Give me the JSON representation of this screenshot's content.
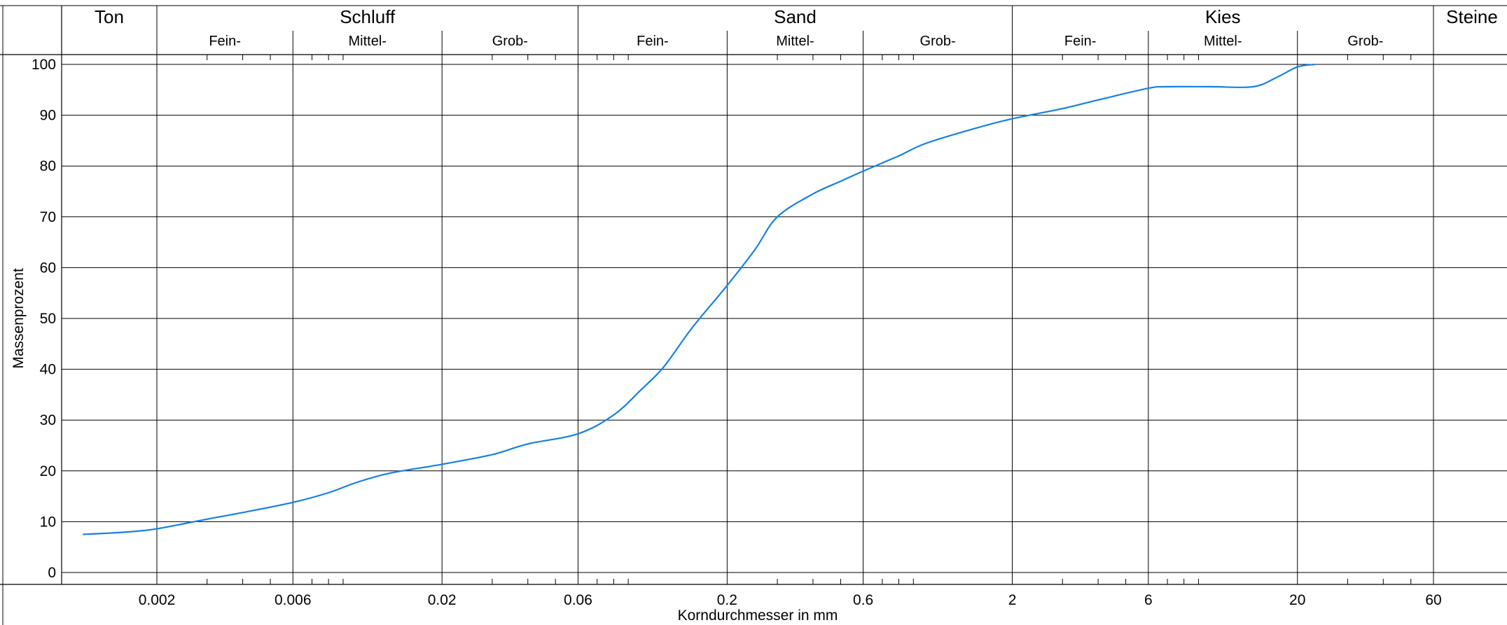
{
  "chart_data": {
    "type": "line",
    "title": "",
    "xlabel": "Korndurchmesser in mm",
    "ylabel": "Massenprozent",
    "x_scale": "log",
    "xlim": [
      0.0006,
      60
    ],
    "ylim": [
      0,
      100
    ],
    "y_ticks": [
      {
        "label": "0",
        "value": 0
      },
      {
        "label": "10",
        "value": 10
      },
      {
        "label": "20",
        "value": 20
      },
      {
        "label": "30",
        "value": 30
      },
      {
        "label": "40",
        "value": 40
      },
      {
        "label": "50",
        "value": 50
      },
      {
        "label": "60",
        "value": 60
      },
      {
        "label": "70",
        "value": 70
      },
      {
        "label": "80",
        "value": 80
      },
      {
        "label": "90",
        "value": 90
      },
      {
        "label": "100",
        "value": 100
      }
    ],
    "x_ticks": [
      {
        "label": "0.002",
        "value": 0.002
      },
      {
        "label": "0.006",
        "value": 0.006
      },
      {
        "label": "0.02",
        "value": 0.02
      },
      {
        "label": "0.06",
        "value": 0.06
      },
      {
        "label": "0.2",
        "value": 0.2
      },
      {
        "label": "0.6",
        "value": 0.6
      },
      {
        "label": "2",
        "value": 2
      },
      {
        "label": "6",
        "value": 6
      },
      {
        "label": "20",
        "value": 20
      },
      {
        "label": "60",
        "value": 60
      }
    ],
    "minor_ticks": [
      0.003,
      0.004,
      0.005,
      0.007,
      0.008,
      0.009,
      0.03,
      0.04,
      0.05,
      0.07,
      0.08,
      0.09,
      0.3,
      0.4,
      0.5,
      0.7,
      0.8,
      0.9,
      3,
      4,
      5,
      7,
      8,
      9,
      30,
      40,
      50
    ],
    "soil_classes": [
      {
        "name": "Ton",
        "from": 0.0006,
        "to": 0.002
      },
      {
        "name": "Schluff",
        "from": 0.002,
        "to": 0.06
      },
      {
        "name": "Sand",
        "from": 0.06,
        "to": 2
      },
      {
        "name": "Kies",
        "from": 2,
        "to": 60
      },
      {
        "name": "Steine",
        "from": 60,
        "to": 80
      }
    ],
    "sub_classes": [
      {
        "name": "Fein-",
        "from": 0.002,
        "to": 0.006
      },
      {
        "name": "Mittel-",
        "from": 0.006,
        "to": 0.02
      },
      {
        "name": "Grob-",
        "from": 0.02,
        "to": 0.06
      },
      {
        "name": "Fein-",
        "from": 0.06,
        "to": 0.2
      },
      {
        "name": "Mittel-",
        "from": 0.2,
        "to": 0.6
      },
      {
        "name": "Grob-",
        "from": 0.6,
        "to": 2
      },
      {
        "name": "Fein-",
        "from": 2,
        "to": 6
      },
      {
        "name": "Mittel-",
        "from": 6,
        "to": 20
      },
      {
        "name": "Grob-",
        "from": 20,
        "to": 60
      }
    ],
    "grid": true,
    "series": [
      {
        "color": "#1580e6",
        "x": [
          0.0011,
          0.0013,
          0.0016,
          0.002,
          0.003,
          0.004,
          0.006,
          0.008,
          0.01,
          0.013,
          0.02,
          0.03,
          0.04,
          0.06,
          0.08,
          0.1,
          0.12,
          0.15,
          0.2,
          0.25,
          0.3,
          0.4,
          0.5,
          0.6,
          0.8,
          1,
          1.5,
          2,
          3,
          4,
          6,
          7,
          10,
          14,
          17,
          20,
          23
        ],
        "y": [
          7.5,
          7.7,
          8.0,
          8.6,
          10.5,
          11.8,
          13.8,
          15.7,
          17.7,
          19.5,
          21.3,
          23.2,
          25.3,
          27.3,
          31.0,
          36.0,
          40.5,
          48.0,
          56.5,
          63.5,
          70.0,
          74.5,
          77.0,
          79.0,
          82.0,
          84.5,
          87.5,
          89.3,
          91.3,
          93.0,
          95.3,
          95.6,
          95.6,
          95.6,
          97.5,
          99.5,
          100
        ]
      }
    ]
  }
}
